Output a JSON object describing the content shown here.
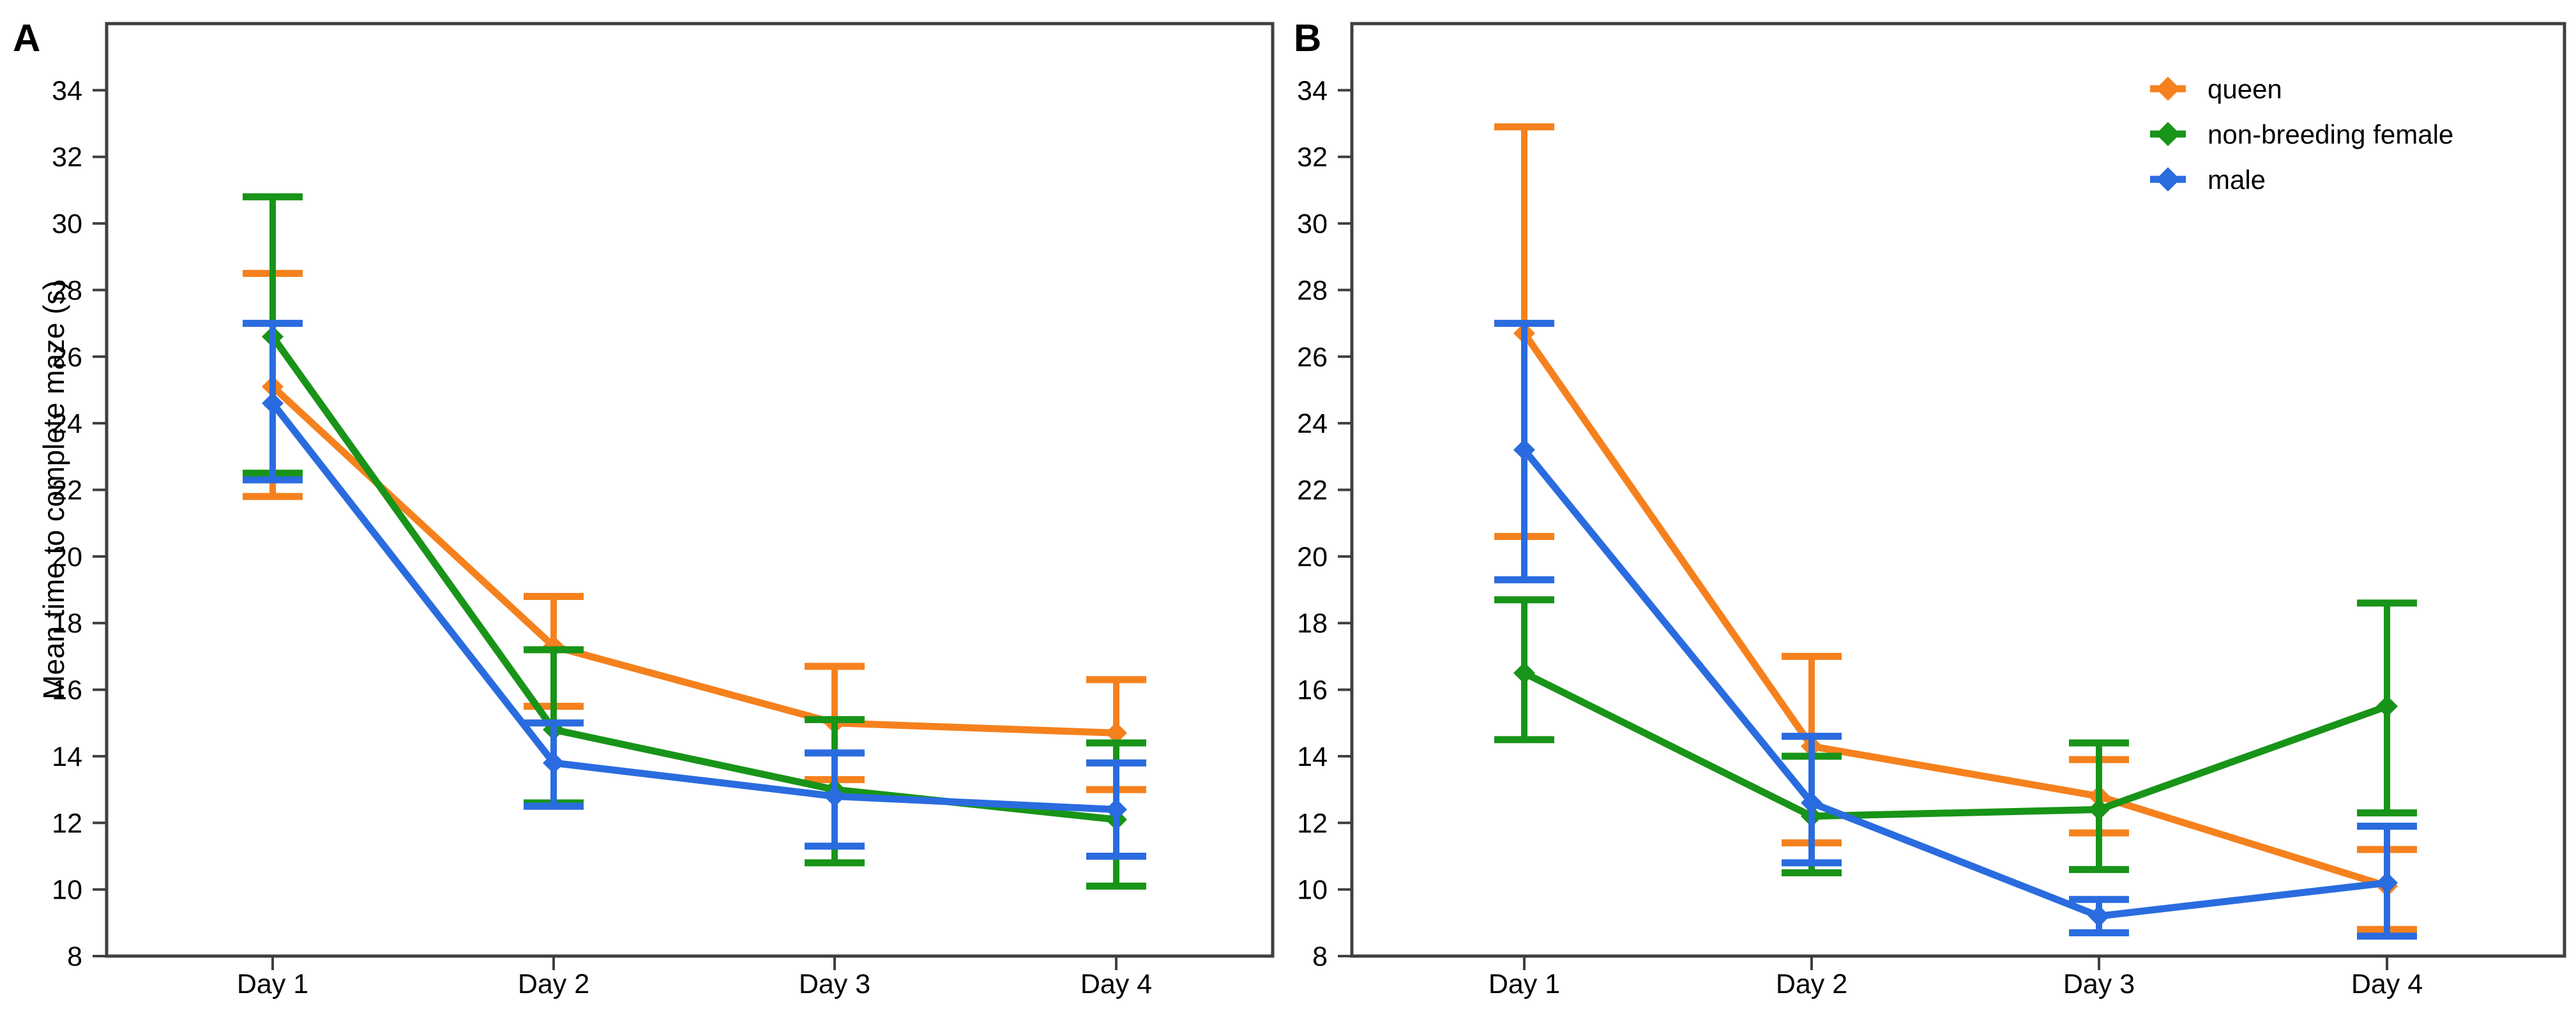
{
  "figure": {
    "ylabel": "Mean time to complete maze (s)",
    "background_color": "#ffffff",
    "axis_color": "#3f3f3f",
    "text_color": "#000000"
  },
  "chart_data": [
    {
      "type": "line",
      "panel_label": "A",
      "categories": [
        "Day 1",
        "Day 2",
        "Day 3",
        "Day 4"
      ],
      "xlabel": "",
      "ylabel": "Mean time to complete maze (s)",
      "ylim": [
        8,
        36
      ],
      "yticks": [
        8,
        10,
        12,
        14,
        16,
        18,
        20,
        22,
        24,
        26,
        28,
        30,
        32,
        34
      ],
      "grid": false,
      "error_bars": true,
      "legend_position": "none",
      "series": [
        {
          "name": "queen",
          "color": "#F5811E",
          "marker": "diamond",
          "values": [
            25.1,
            17.3,
            15.0,
            14.7
          ],
          "err_high": [
            28.5,
            18.8,
            16.7,
            16.3
          ],
          "err_low": [
            21.8,
            15.5,
            13.3,
            13.0
          ]
        },
        {
          "name": "non-breeding female",
          "color": "#189418",
          "marker": "diamond",
          "values": [
            26.6,
            14.8,
            13.0,
            12.1
          ],
          "err_high": [
            30.8,
            17.2,
            15.1,
            14.4
          ],
          "err_low": [
            22.5,
            12.6,
            10.8,
            10.1
          ]
        },
        {
          "name": "male",
          "color": "#2A6CDF",
          "marker": "diamond",
          "values": [
            24.6,
            13.8,
            12.8,
            12.4
          ],
          "err_high": [
            27.0,
            15.0,
            14.1,
            13.8
          ],
          "err_low": [
            22.3,
            12.5,
            11.3,
            11.0
          ]
        }
      ]
    },
    {
      "type": "line",
      "panel_label": "B",
      "categories": [
        "Day 1",
        "Day 2",
        "Day 3",
        "Day 4"
      ],
      "xlabel": "",
      "ylabel": "",
      "ylim": [
        8,
        36
      ],
      "yticks": [
        8,
        10,
        12,
        14,
        16,
        18,
        20,
        22,
        24,
        26,
        28,
        30,
        32,
        34
      ],
      "grid": false,
      "error_bars": true,
      "legend_position": "top-right",
      "series": [
        {
          "name": "queen",
          "color": "#F5811E",
          "marker": "diamond",
          "values": [
            26.7,
            14.3,
            12.8,
            10.1
          ],
          "err_high": [
            32.9,
            17.0,
            13.9,
            11.2
          ],
          "err_low": [
            20.6,
            11.4,
            11.7,
            8.8
          ]
        },
        {
          "name": "non-breeding female",
          "color": "#189418",
          "marker": "diamond",
          "values": [
            16.5,
            12.2,
            12.4,
            15.5
          ],
          "err_high": [
            18.7,
            14.0,
            14.4,
            18.6
          ],
          "err_low": [
            14.5,
            10.5,
            10.6,
            12.3
          ]
        },
        {
          "name": "male",
          "color": "#2A6CDF",
          "marker": "diamond",
          "values": [
            23.2,
            12.6,
            9.2,
            10.2
          ],
          "err_high": [
            27.0,
            14.6,
            9.7,
            11.9
          ],
          "err_low": [
            19.3,
            10.8,
            8.7,
            8.6
          ]
        }
      ]
    }
  ]
}
